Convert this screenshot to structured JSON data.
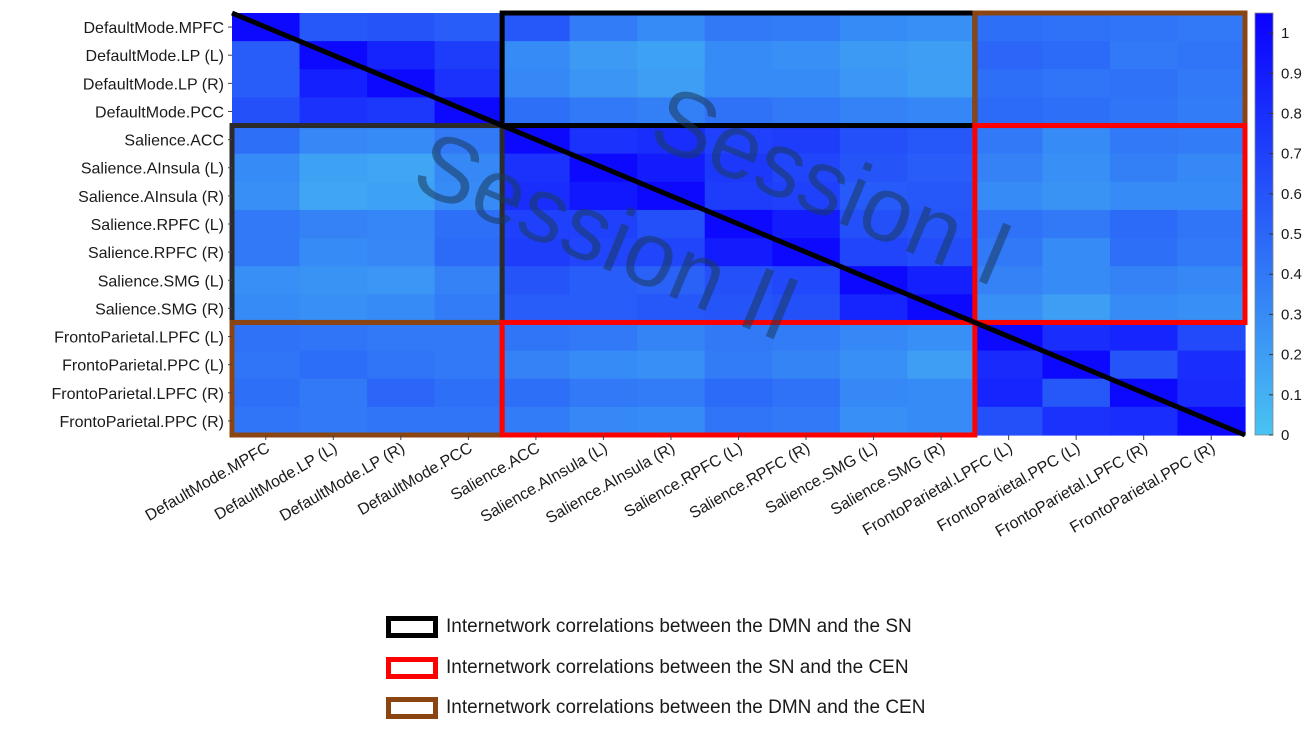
{
  "chart_data": {
    "type": "heatmap",
    "labels": [
      "DefaultMode.MPFC",
      "DefaultMode.LP (L)",
      "DefaultMode.LP (R)",
      "DefaultMode.PCC",
      "Salience.ACC",
      "Salience.AInsula (L)",
      "Salience.AInsula (R)",
      "Salience.RPFC (L)",
      "Salience.RPFC (R)",
      "Salience.SMG (L)",
      "Salience.SMG (R)",
      "FrontoParietal.LPFC (L)",
      "FrontoParietal.PPC (L)",
      "FrontoParietal.LPFC (R)",
      "FrontoParietal.PPC (R)"
    ],
    "values": [
      [
        1.0,
        0.58,
        0.6,
        0.55,
        0.58,
        0.38,
        0.3,
        0.4,
        0.38,
        0.3,
        0.28,
        0.45,
        0.44,
        0.42,
        0.4
      ],
      [
        0.55,
        1.0,
        0.86,
        0.72,
        0.3,
        0.22,
        0.18,
        0.3,
        0.28,
        0.22,
        0.2,
        0.5,
        0.48,
        0.4,
        0.42
      ],
      [
        0.55,
        0.88,
        1.0,
        0.78,
        0.32,
        0.25,
        0.2,
        0.3,
        0.3,
        0.24,
        0.2,
        0.45,
        0.42,
        0.44,
        0.4
      ],
      [
        0.62,
        0.78,
        0.75,
        1.0,
        0.45,
        0.4,
        0.36,
        0.44,
        0.4,
        0.35,
        0.33,
        0.48,
        0.45,
        0.42,
        0.38
      ],
      [
        0.45,
        0.32,
        0.3,
        0.4,
        1.0,
        0.78,
        0.8,
        0.7,
        0.72,
        0.62,
        0.58,
        0.4,
        0.3,
        0.4,
        0.38
      ],
      [
        0.3,
        0.18,
        0.16,
        0.32,
        0.78,
        1.0,
        0.9,
        0.75,
        0.68,
        0.6,
        0.55,
        0.35,
        0.28,
        0.36,
        0.32
      ],
      [
        0.28,
        0.16,
        0.18,
        0.3,
        0.8,
        0.92,
        1.0,
        0.72,
        0.7,
        0.56,
        0.58,
        0.3,
        0.26,
        0.3,
        0.3
      ],
      [
        0.4,
        0.35,
        0.33,
        0.45,
        0.7,
        0.7,
        0.62,
        1.0,
        0.9,
        0.62,
        0.6,
        0.44,
        0.4,
        0.48,
        0.42
      ],
      [
        0.4,
        0.3,
        0.32,
        0.48,
        0.72,
        0.68,
        0.68,
        0.9,
        1.0,
        0.68,
        0.64,
        0.4,
        0.3,
        0.45,
        0.4
      ],
      [
        0.28,
        0.26,
        0.24,
        0.35,
        0.6,
        0.55,
        0.52,
        0.62,
        0.66,
        1.0,
        0.88,
        0.35,
        0.3,
        0.35,
        0.32
      ],
      [
        0.3,
        0.28,
        0.3,
        0.38,
        0.55,
        0.55,
        0.58,
        0.6,
        0.62,
        0.85,
        1.0,
        0.28,
        0.2,
        0.3,
        0.28
      ],
      [
        0.44,
        0.42,
        0.4,
        0.4,
        0.42,
        0.4,
        0.34,
        0.4,
        0.38,
        0.32,
        0.28,
        1.0,
        0.8,
        0.85,
        0.65
      ],
      [
        0.42,
        0.46,
        0.42,
        0.4,
        0.35,
        0.3,
        0.28,
        0.38,
        0.34,
        0.28,
        0.2,
        0.82,
        1.0,
        0.6,
        0.8
      ],
      [
        0.45,
        0.4,
        0.5,
        0.45,
        0.45,
        0.4,
        0.38,
        0.48,
        0.44,
        0.32,
        0.3,
        0.85,
        0.58,
        1.0,
        0.82
      ],
      [
        0.42,
        0.4,
        0.42,
        0.42,
        0.38,
        0.32,
        0.3,
        0.42,
        0.4,
        0.28,
        0.3,
        0.62,
        0.78,
        0.8,
        1.0
      ]
    ],
    "colorbar": {
      "ticks": [
        "1",
        "0.9",
        "0.8",
        "0.7",
        "0.6",
        "0.5",
        "0.4",
        "0.3",
        "0.2",
        "0.1",
        "0"
      ],
      "range": [
        0,
        1.05
      ],
      "colors": {
        "low": "#49c3f2",
        "high": "#0a00ff"
      }
    },
    "annotations": [
      "Session I",
      "Session II"
    ],
    "boxes": [
      {
        "color": "#000000",
        "rows": [
          0,
          3
        ],
        "cols": [
          4,
          10
        ]
      },
      {
        "color": "#2b2b2b",
        "rows": [
          4,
          10
        ],
        "cols": [
          0,
          3
        ]
      },
      {
        "color": "#8b4513",
        "rows": [
          0,
          3
        ],
        "cols": [
          11,
          14
        ]
      },
      {
        "color": "#8b4513",
        "rows": [
          11,
          14
        ],
        "cols": [
          0,
          3
        ]
      },
      {
        "color": "#ff0000",
        "rows": [
          4,
          10
        ],
        "cols": [
          11,
          14
        ]
      },
      {
        "color": "#ff0000",
        "rows": [
          11,
          14
        ],
        "cols": [
          4,
          10
        ]
      }
    ]
  },
  "legend": [
    {
      "label": "Internetwork correlations between the DMN and the SN",
      "color": "#000000"
    },
    {
      "label": "Internetwork correlations between the SN and the CEN",
      "color": "#ff0000"
    },
    {
      "label": "Internetwork correlations between the DMN and the CEN",
      "color": "#8b4513"
    }
  ]
}
